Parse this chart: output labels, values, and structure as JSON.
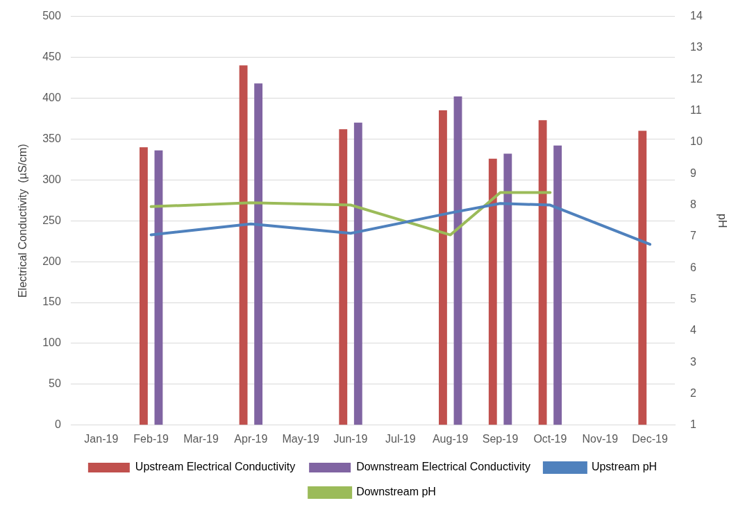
{
  "chart_data": {
    "type": "bar",
    "categories": [
      "Jan-19",
      "Feb-19",
      "Mar-19",
      "Apr-19",
      "May-19",
      "Jun-19",
      "Jul-19",
      "Aug-19",
      "Sep-19",
      "Oct-19",
      "Nov-19",
      "Dec-19"
    ],
    "ylabel": "Electrical Conductivity  (µS/cm)",
    "y2label": "pH",
    "ylim": [
      0,
      500
    ],
    "yticks": [
      0,
      50,
      100,
      150,
      200,
      250,
      300,
      350,
      400,
      450,
      500
    ],
    "y2lim": [
      1,
      14
    ],
    "y2ticks": [
      1,
      2,
      3,
      4,
      5,
      6,
      7,
      8,
      9,
      10,
      11,
      12,
      13,
      14
    ],
    "grid": "y",
    "legend": "bottom",
    "series": [
      {
        "name": "Upstream Electrical Conductivity",
        "color": "#c0504d",
        "values": [
          null,
          340,
          null,
          440,
          null,
          362,
          null,
          385,
          326,
          373,
          null,
          360
        ]
      },
      {
        "name": "Downstream Electrical Conductivity",
        "color": "#8064a2",
        "values": [
          null,
          336,
          null,
          418,
          null,
          370,
          null,
          402,
          332,
          342,
          null,
          null
        ]
      },
      {
        "name": "Upstream pH",
        "type": "line",
        "axis": "y2",
        "color": "#4f81bd",
        "values": [
          null,
          7.05,
          null,
          7.4,
          null,
          7.1,
          null,
          7.75,
          8.05,
          8.0,
          null,
          6.75
        ]
      },
      {
        "name": "Downstream pH",
        "type": "line",
        "axis": "y2",
        "color": "#9bbb59",
        "values": [
          null,
          7.95,
          null,
          8.07,
          null,
          8.0,
          null,
          7.05,
          8.4,
          8.4,
          null,
          null
        ]
      }
    ]
  }
}
